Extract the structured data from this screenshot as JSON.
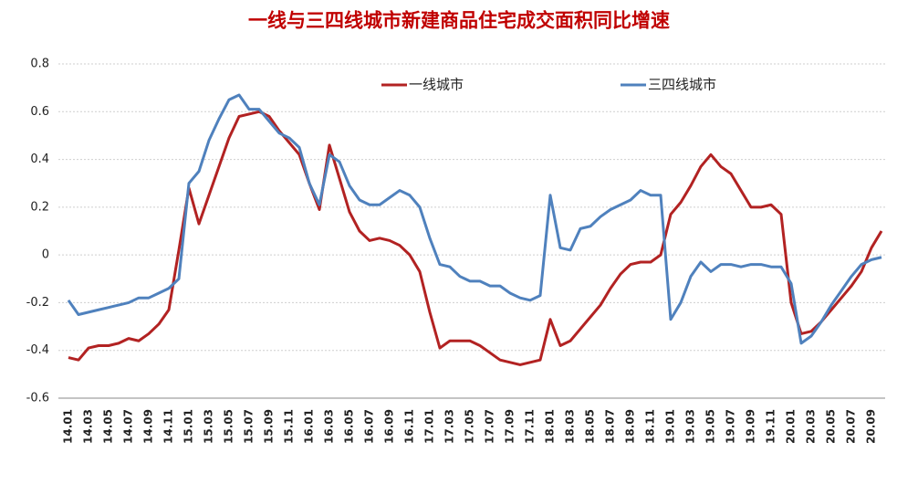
{
  "chart_data": {
    "type": "line",
    "title": "一线与三四线城市新建商品住宅成交面积同比增速",
    "categories": [
      "14.01",
      null,
      "14.03",
      null,
      "14.05",
      null,
      "14.07",
      null,
      "14.09",
      null,
      "14.11",
      null,
      "15.01",
      null,
      "15.03",
      null,
      "15.05",
      null,
      "15.07",
      null,
      "15.09",
      null,
      "15.11",
      null,
      "16.01",
      null,
      "16.03",
      null,
      "16.05",
      null,
      "16.07",
      null,
      "16.09",
      null,
      "16.11",
      null,
      "17.01",
      null,
      "17.03",
      null,
      "17.05",
      null,
      "17.07",
      null,
      "17.09",
      null,
      "17.11",
      null,
      "18.01",
      null,
      "18.03",
      null,
      "18.05",
      null,
      "18.07",
      null,
      "18.09",
      null,
      "18.11",
      null,
      "19.01",
      null,
      "19.03",
      null,
      "19.05",
      null,
      "19.07",
      null,
      "19.09",
      null,
      "19.11",
      null,
      "20.01",
      null,
      "20.03",
      null,
      "20.05",
      null,
      "20.07",
      null,
      "20.09",
      null
    ],
    "series": [
      {
        "name": "一线城市",
        "color": "#b22222",
        "values": [
          -0.43,
          -0.44,
          -0.39,
          -0.38,
          -0.38,
          -0.37,
          -0.35,
          -0.36,
          -0.33,
          -0.29,
          -0.23,
          0.02,
          0.28,
          0.13,
          0.25,
          0.37,
          0.49,
          0.58,
          0.59,
          0.6,
          0.58,
          0.52,
          0.47,
          0.42,
          0.3,
          0.19,
          0.46,
          0.32,
          0.18,
          0.1,
          0.06,
          0.07,
          0.06,
          0.04,
          0.0,
          -0.07,
          -0.24,
          -0.39,
          -0.36,
          -0.36,
          -0.36,
          -0.38,
          -0.41,
          -0.44,
          -0.45,
          -0.46,
          -0.45,
          -0.44,
          -0.27,
          -0.38,
          -0.36,
          -0.31,
          -0.26,
          -0.21,
          -0.14,
          -0.08,
          -0.04,
          -0.03,
          -0.03,
          0.0,
          0.17,
          0.22,
          0.29,
          0.37,
          0.42,
          0.37,
          0.34,
          0.27,
          0.2,
          0.2,
          0.21,
          0.17,
          -0.2,
          -0.33,
          -0.32,
          -0.28,
          -0.23,
          -0.18,
          -0.13,
          -0.07,
          0.03,
          0.1
        ]
      },
      {
        "name": "三四线城市",
        "color": "#4f81bd",
        "values": [
          -0.19,
          -0.25,
          -0.24,
          -0.23,
          -0.22,
          -0.21,
          -0.2,
          -0.18,
          -0.18,
          -0.16,
          -0.14,
          -0.1,
          0.3,
          0.35,
          0.48,
          0.57,
          0.65,
          0.67,
          0.61,
          0.61,
          0.56,
          0.51,
          0.49,
          0.45,
          0.3,
          0.21,
          0.42,
          0.39,
          0.29,
          0.23,
          0.21,
          0.21,
          0.24,
          0.27,
          0.25,
          0.2,
          0.07,
          -0.04,
          -0.05,
          -0.09,
          -0.11,
          -0.11,
          -0.13,
          -0.13,
          -0.16,
          -0.18,
          -0.19,
          -0.17,
          0.25,
          0.03,
          0.02,
          0.11,
          0.12,
          0.16,
          0.19,
          0.21,
          0.23,
          0.27,
          0.25,
          0.25,
          -0.27,
          -0.2,
          -0.09,
          -0.03,
          -0.07,
          -0.04,
          -0.04,
          -0.05,
          -0.04,
          -0.04,
          -0.05,
          -0.05,
          -0.12,
          -0.37,
          -0.34,
          -0.28,
          -0.21,
          -0.15,
          -0.09,
          -0.04,
          -0.02,
          -0.01
        ]
      }
    ],
    "ylim": [
      -0.6,
      0.8
    ],
    "yticks": [
      {
        "value": -0.6,
        "label": "-0.6"
      },
      {
        "value": -0.4,
        "label": "-0.4"
      },
      {
        "value": -0.2,
        "label": "-0.2"
      },
      0,
      {
        "value": 0.2,
        "label": "0.2"
      },
      {
        "value": 0.4,
        "label": "0.4"
      },
      {
        "value": 0.6,
        "label": "0.6"
      },
      {
        "value": 0.8,
        "label": "0.8"
      }
    ],
    "grid": true,
    "legend": "top"
  }
}
